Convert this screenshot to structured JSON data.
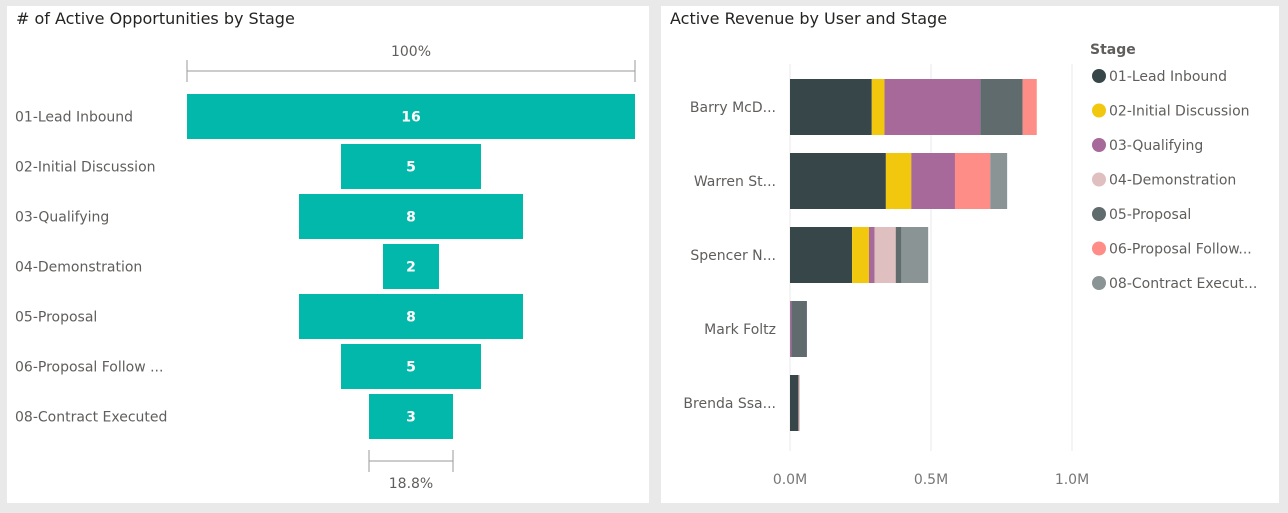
{
  "funnel": {
    "title": "# of Active Opportunities by Stage",
    "top_percent": "100%",
    "bottom_percent": "18.8%"
  },
  "stacked_bar": {
    "title": "Active Revenue by User and Stage",
    "legend_title": "Stage"
  },
  "colors": {
    "funnel_bar": "#01b8aa",
    "stages": [
      "#374649",
      "#f2c80f",
      "#a66999",
      "#dfbfbf",
      "#5f6b6d",
      "#fd8d86",
      "#8a9494"
    ]
  },
  "chart_data": [
    {
      "type": "bar",
      "subtype": "funnel",
      "title": "# of Active Opportunities by Stage",
      "categories": [
        "01-Lead Inbound",
        "02-Initial Discussion",
        "03-Qualifying",
        "04-Demonstration",
        "05-Proposal",
        "06-Proposal Follow ...",
        "08-Contract Executed"
      ],
      "values": [
        16,
        5,
        8,
        2,
        8,
        5,
        3
      ],
      "annotations": {
        "top": "100%",
        "bottom": "18.8%"
      }
    },
    {
      "type": "bar",
      "subtype": "stacked-horizontal",
      "title": "Active Revenue by User and Stage",
      "legend_title": "Stage",
      "legend_position": "right",
      "categories": [
        "Barry McD...",
        "Warren St...",
        "Spencer N...",
        "Mark Foltz",
        "Brenda Ssa..."
      ],
      "series": [
        {
          "name": "01-Lead Inbound",
          "values": [
            0.29,
            0.34,
            0.22,
            0.0,
            0.03
          ]
        },
        {
          "name": "02-Initial Discussion",
          "values": [
            0.045,
            0.09,
            0.06,
            0.0,
            0.0
          ]
        },
        {
          "name": "03-Qualifying",
          "values": [
            0.34,
            0.155,
            0.02,
            0.005,
            0.0
          ]
        },
        {
          "name": "04-Demonstration",
          "values": [
            0.0,
            0.0,
            0.075,
            0.0,
            0.005
          ]
        },
        {
          "name": "05-Proposal",
          "values": [
            0.15,
            0.0,
            0.02,
            0.055,
            0.0
          ]
        },
        {
          "name": "06-Proposal Follow...",
          "values": [
            0.05,
            0.125,
            0.0,
            0.0,
            0.0
          ]
        },
        {
          "name": "08-Contract Execut...",
          "values": [
            0.0,
            0.06,
            0.095,
            0.0,
            0.0
          ]
        }
      ],
      "xticks": [
        "0.0M",
        "0.5M",
        "1.0M"
      ],
      "xlim": [
        0,
        1.0
      ],
      "x_unit": "M",
      "grid": true
    }
  ]
}
